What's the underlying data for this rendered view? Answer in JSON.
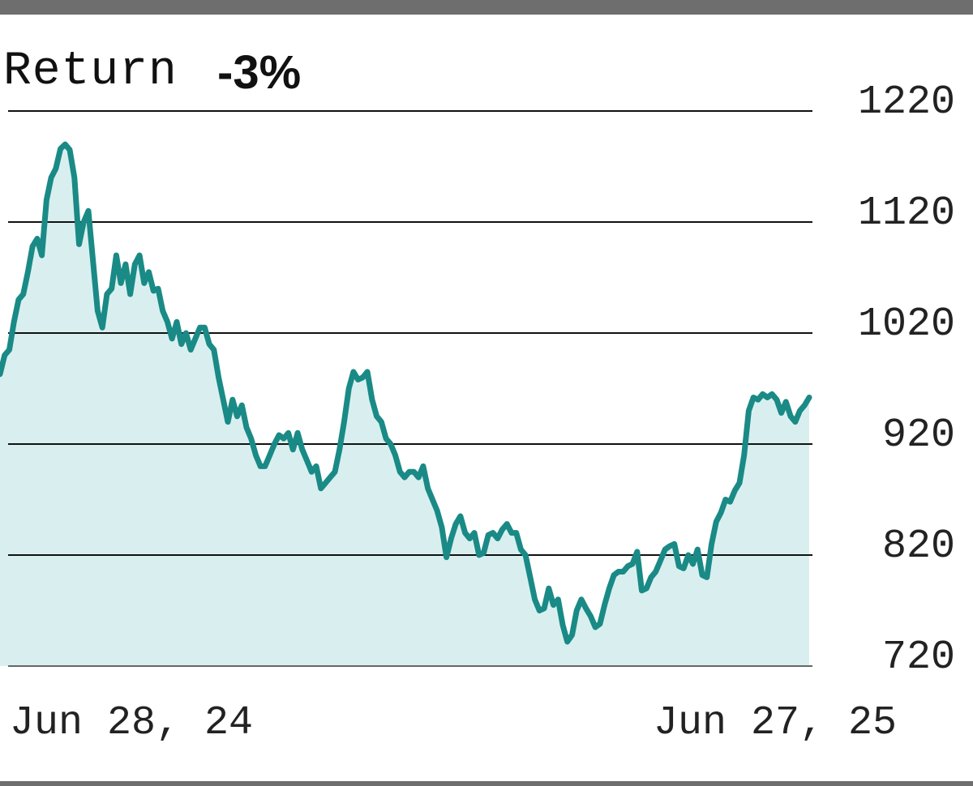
{
  "header": {
    "label": "Return",
    "value": "-3%"
  },
  "colors": {
    "line": "#1a8a86",
    "fill": "#d9efef",
    "grid": "#111111",
    "rule": "#6e6e6e"
  },
  "chart_data": {
    "type": "area",
    "title": "Return -3%",
    "x_start_label": "Jun 28, 24",
    "x_end_label": "Jun 27, 25",
    "y_ticks": [
      "1220",
      "1120",
      "1020",
      "920",
      "820",
      "720"
    ],
    "y_tick_values": [
      1220,
      1120,
      1020,
      920,
      820,
      720
    ],
    "ylim": [
      720,
      1220
    ],
    "grid": true,
    "series": [
      {
        "values": [
          983,
          1000,
          1005,
          1030,
          1050,
          1055,
          1075,
          1098,
          1105,
          1090,
          1140,
          1160,
          1168,
          1186,
          1190,
          1185,
          1160,
          1100,
          1120,
          1130,
          1085,
          1040,
          1025,
          1055,
          1060,
          1090,
          1065,
          1082,
          1055,
          1082,
          1090,
          1065,
          1075,
          1058,
          1060,
          1040,
          1030,
          1015,
          1030,
          1010,
          1020,
          1005,
          1015,
          1025,
          1025,
          1010,
          1005,
          980,
          960,
          940,
          960,
          945,
          955,
          935,
          925,
          910,
          900,
          900,
          910,
          920,
          928,
          925,
          930,
          915,
          930,
          915,
          905,
          895,
          900,
          880,
          885,
          890,
          895,
          915,
          940,
          970,
          985,
          978,
          980,
          985,
          960,
          945,
          940,
          925,
          920,
          910,
          895,
          890,
          895,
          895,
          890,
          900,
          880,
          870,
          860,
          845,
          818,
          835,
          848,
          855,
          840,
          835,
          840,
          820,
          822,
          838,
          840,
          835,
          843,
          848,
          840,
          840,
          825,
          820,
          800,
          780,
          770,
          772,
          790,
          775,
          780,
          757,
          742,
          748,
          770,
          780,
          772,
          765,
          755,
          758,
          775,
          790,
          802,
          805,
          805,
          810,
          812,
          823,
          788,
          790,
          800,
          805,
          815,
          825,
          828,
          830,
          810,
          808,
          820,
          812,
          825,
          802,
          800,
          830,
          850,
          858,
          870,
          868,
          878,
          885,
          910,
          950,
          962,
          960,
          965,
          962,
          965,
          960,
          948,
          958,
          945,
          940,
          950,
          955,
          962
        ]
      }
    ]
  }
}
